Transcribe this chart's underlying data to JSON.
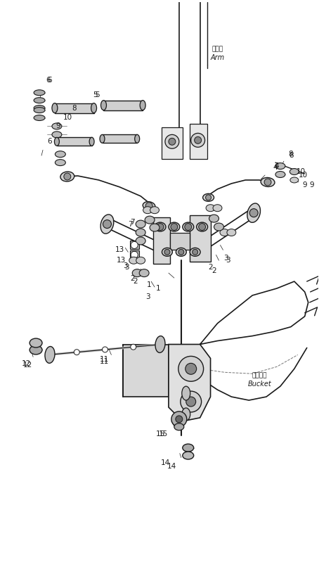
{
  "bg_color": "#ffffff",
  "line_color": "#1a1a1a",
  "fig_width": 4.54,
  "fig_height": 8.26,
  "dpi": 100,
  "arm_ja": "アーム",
  "arm_en": "Arm",
  "bucket_ja": "バケット",
  "bucket_en": "Bucket",
  "lw_main": 0.9,
  "lw_thin": 0.6,
  "lw_thick": 1.4
}
